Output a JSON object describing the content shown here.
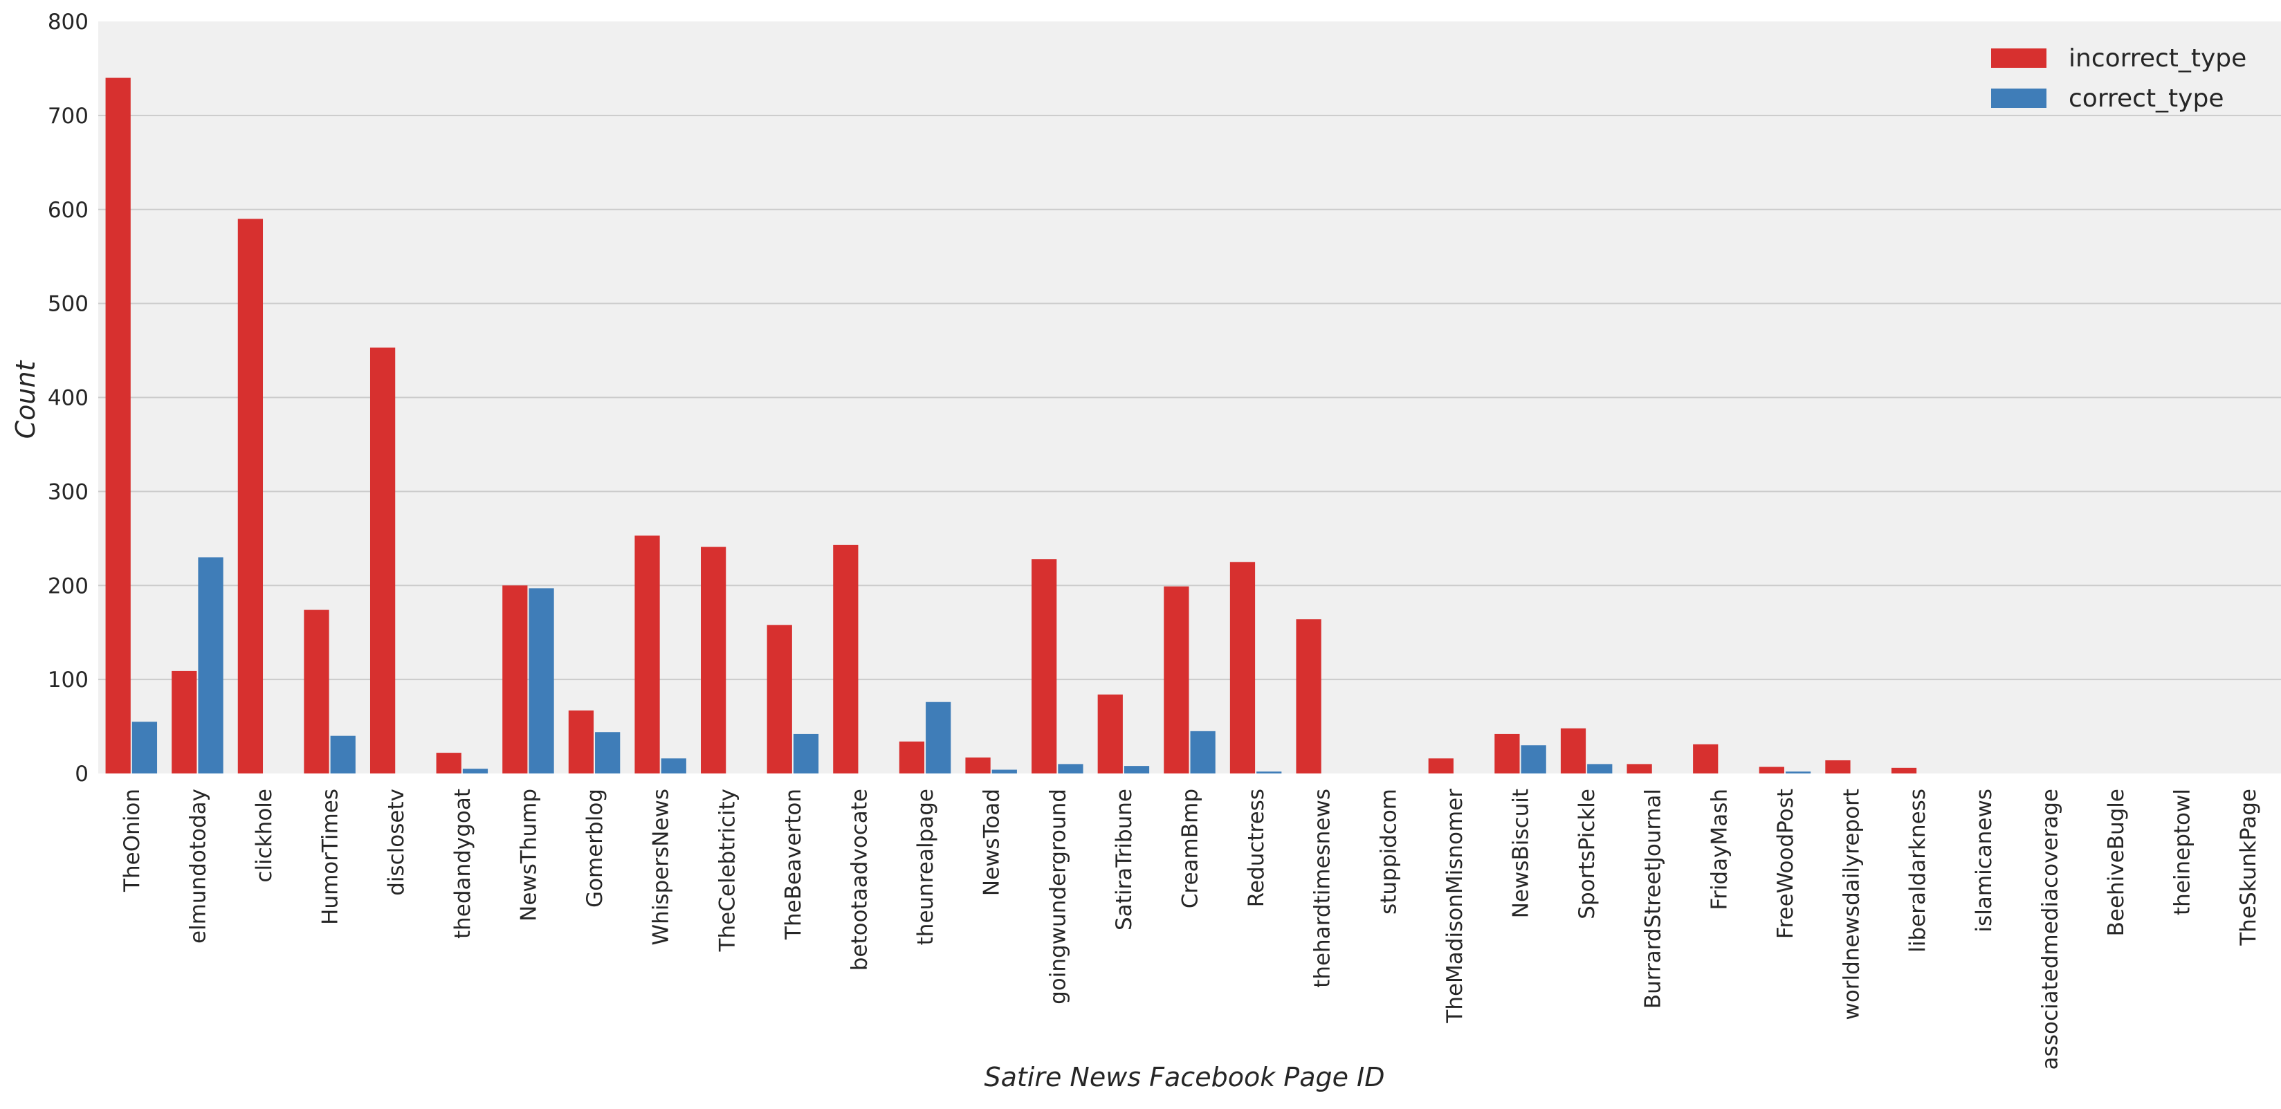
{
  "chart_data": {
    "type": "bar",
    "xlabel": "Satire News Facebook Page ID",
    "ylabel": "Count",
    "ylim": [
      0,
      800
    ],
    "yticks": [
      0,
      100,
      200,
      300,
      400,
      500,
      600,
      700,
      800
    ],
    "grid": true,
    "legend_position": "top-right",
    "categories": [
      "TheOnion",
      "elmundotoday",
      "clickhole",
      "HumorTimes",
      "disclosetv",
      "thedandygoat",
      "NewsThump",
      "Gomerblog",
      "WhispersNews",
      "TheCelebtricity",
      "TheBeaverton",
      "betootaadvocate",
      "theunrealpage",
      "NewsToad",
      "goingwunderground",
      "SatiraTribune",
      "CreamBmp",
      "Reductress",
      "thehardtimesnews",
      "stuppidcom",
      "TheMadisonMisnomer",
      "NewsBiscuit",
      "SportsPickle",
      "BurrardStreetJournal",
      "FridayMash",
      "FreeWoodPost",
      "worldnewsdailyreport",
      "liberaldarkness",
      "islamicanews",
      "associatedmediacoverage",
      "BeehiveBugle",
      "theineptowl",
      "TheSkunkPage"
    ],
    "series": [
      {
        "name": "incorrect_type",
        "color": "#d7302f",
        "values": [
          740,
          109,
          590,
          174,
          453,
          22,
          200,
          67,
          253,
          241,
          158,
          243,
          34,
          17,
          228,
          84,
          199,
          225,
          164,
          0,
          16,
          42,
          48,
          10,
          31,
          7,
          14,
          6,
          0,
          0,
          0,
          0,
          0
        ]
      },
      {
        "name": "correct_type",
        "color": "#3f7db8",
        "values": [
          55,
          230,
          0,
          40,
          0,
          5,
          197,
          44,
          16,
          0,
          42,
          0,
          76,
          4,
          10,
          8,
          45,
          2,
          0,
          0,
          0,
          30,
          10,
          0,
          0,
          2,
          0,
          0,
          0,
          0,
          0,
          0,
          0
        ]
      }
    ]
  }
}
